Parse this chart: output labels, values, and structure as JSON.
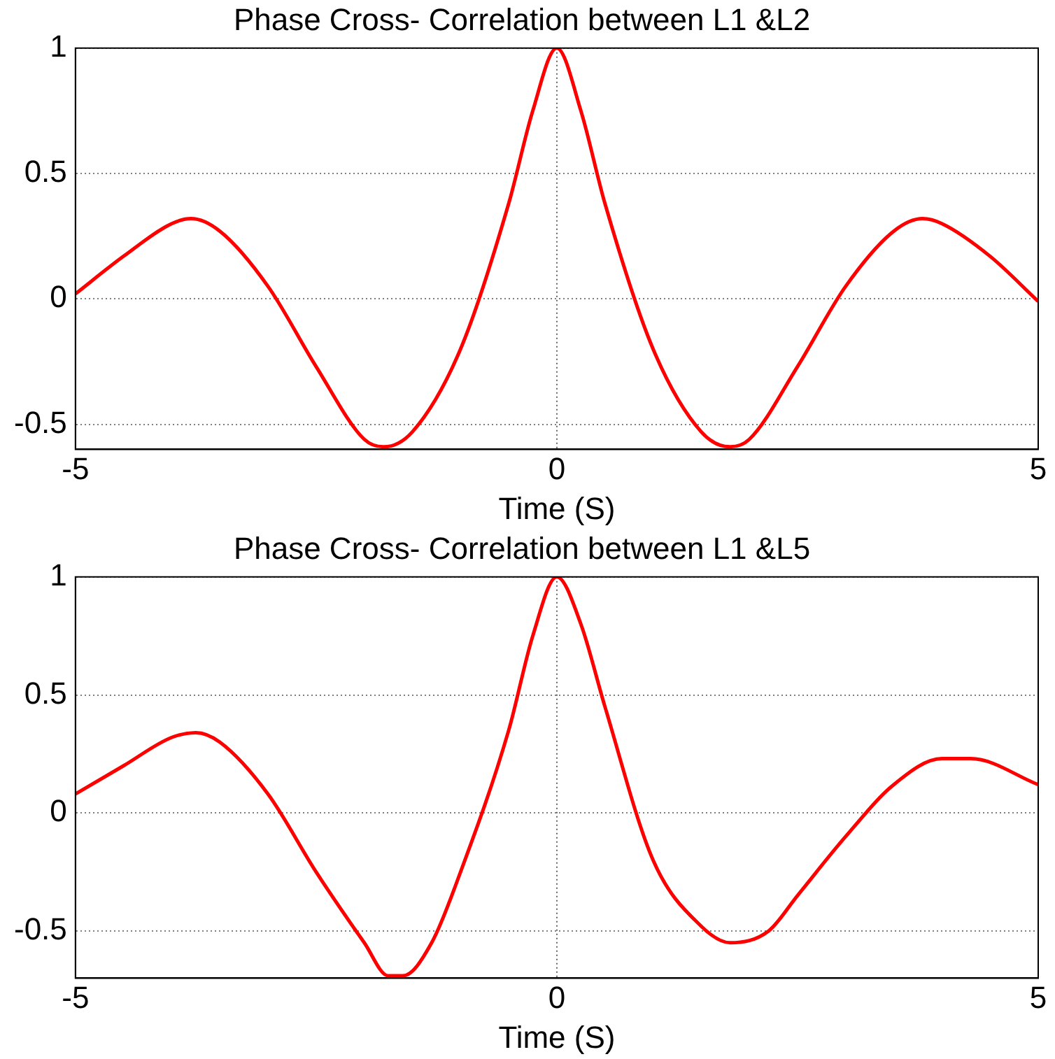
{
  "chart_data": [
    {
      "type": "line",
      "title": "Phase Cross- Correlation between L1 &L2",
      "xlabel": "Time (S)",
      "x": [
        -5,
        -4.5,
        -4,
        -3.8,
        -3.5,
        -3,
        -2.5,
        -2,
        -1.8,
        -1.5,
        -1,
        -0.5,
        -0.25,
        0,
        0.25,
        0.5,
        1,
        1.5,
        1.8,
        2,
        2.5,
        3,
        3.5,
        3.8,
        4,
        4.5,
        5
      ],
      "values": [
        0.02,
        0.17,
        0.3,
        0.32,
        0.27,
        0.05,
        -0.27,
        -0.56,
        -0.59,
        -0.53,
        -0.2,
        0.38,
        0.75,
        1,
        0.75,
        0.38,
        -0.2,
        -0.53,
        -0.59,
        -0.56,
        -0.27,
        0.05,
        0.27,
        0.32,
        0.3,
        0.17,
        -0.01
      ],
      "color": "#ff0000",
      "xlim": [
        -5,
        5
      ],
      "xticks": [
        -5,
        0,
        5
      ],
      "ylim": [
        -0.6,
        1
      ],
      "yticks": [
        -0.5,
        0,
        0.5,
        1
      ],
      "grid": true
    },
    {
      "type": "line",
      "title": "Phase Cross- Correlation between L1 &L5",
      "xlabel": "Time (S)",
      "x": [
        -5,
        -4.5,
        -4,
        -3.75,
        -3.5,
        -3,
        -2.5,
        -2,
        -1.75,
        -1.6,
        -1.3,
        -1,
        -0.5,
        -0.25,
        0,
        0.25,
        0.5,
        1,
        1.5,
        1.8,
        2.2,
        2.5,
        3,
        3.5,
        4,
        4.3,
        5
      ],
      "values": [
        0.08,
        0.2,
        0.32,
        0.34,
        0.3,
        0.08,
        -0.25,
        -0.55,
        -0.69,
        -0.69,
        -0.55,
        -0.25,
        0.35,
        0.75,
        1,
        0.8,
        0.45,
        -0.2,
        -0.48,
        -0.55,
        -0.5,
        -0.35,
        -0.1,
        0.12,
        0.23,
        0.23,
        0.12
      ],
      "color": "#ff0000",
      "xlim": [
        -5,
        5
      ],
      "xticks": [
        -5,
        0,
        5
      ],
      "ylim": [
        -0.7,
        1
      ],
      "yticks": [
        -0.5,
        0,
        0.5,
        1
      ],
      "grid": true
    }
  ]
}
